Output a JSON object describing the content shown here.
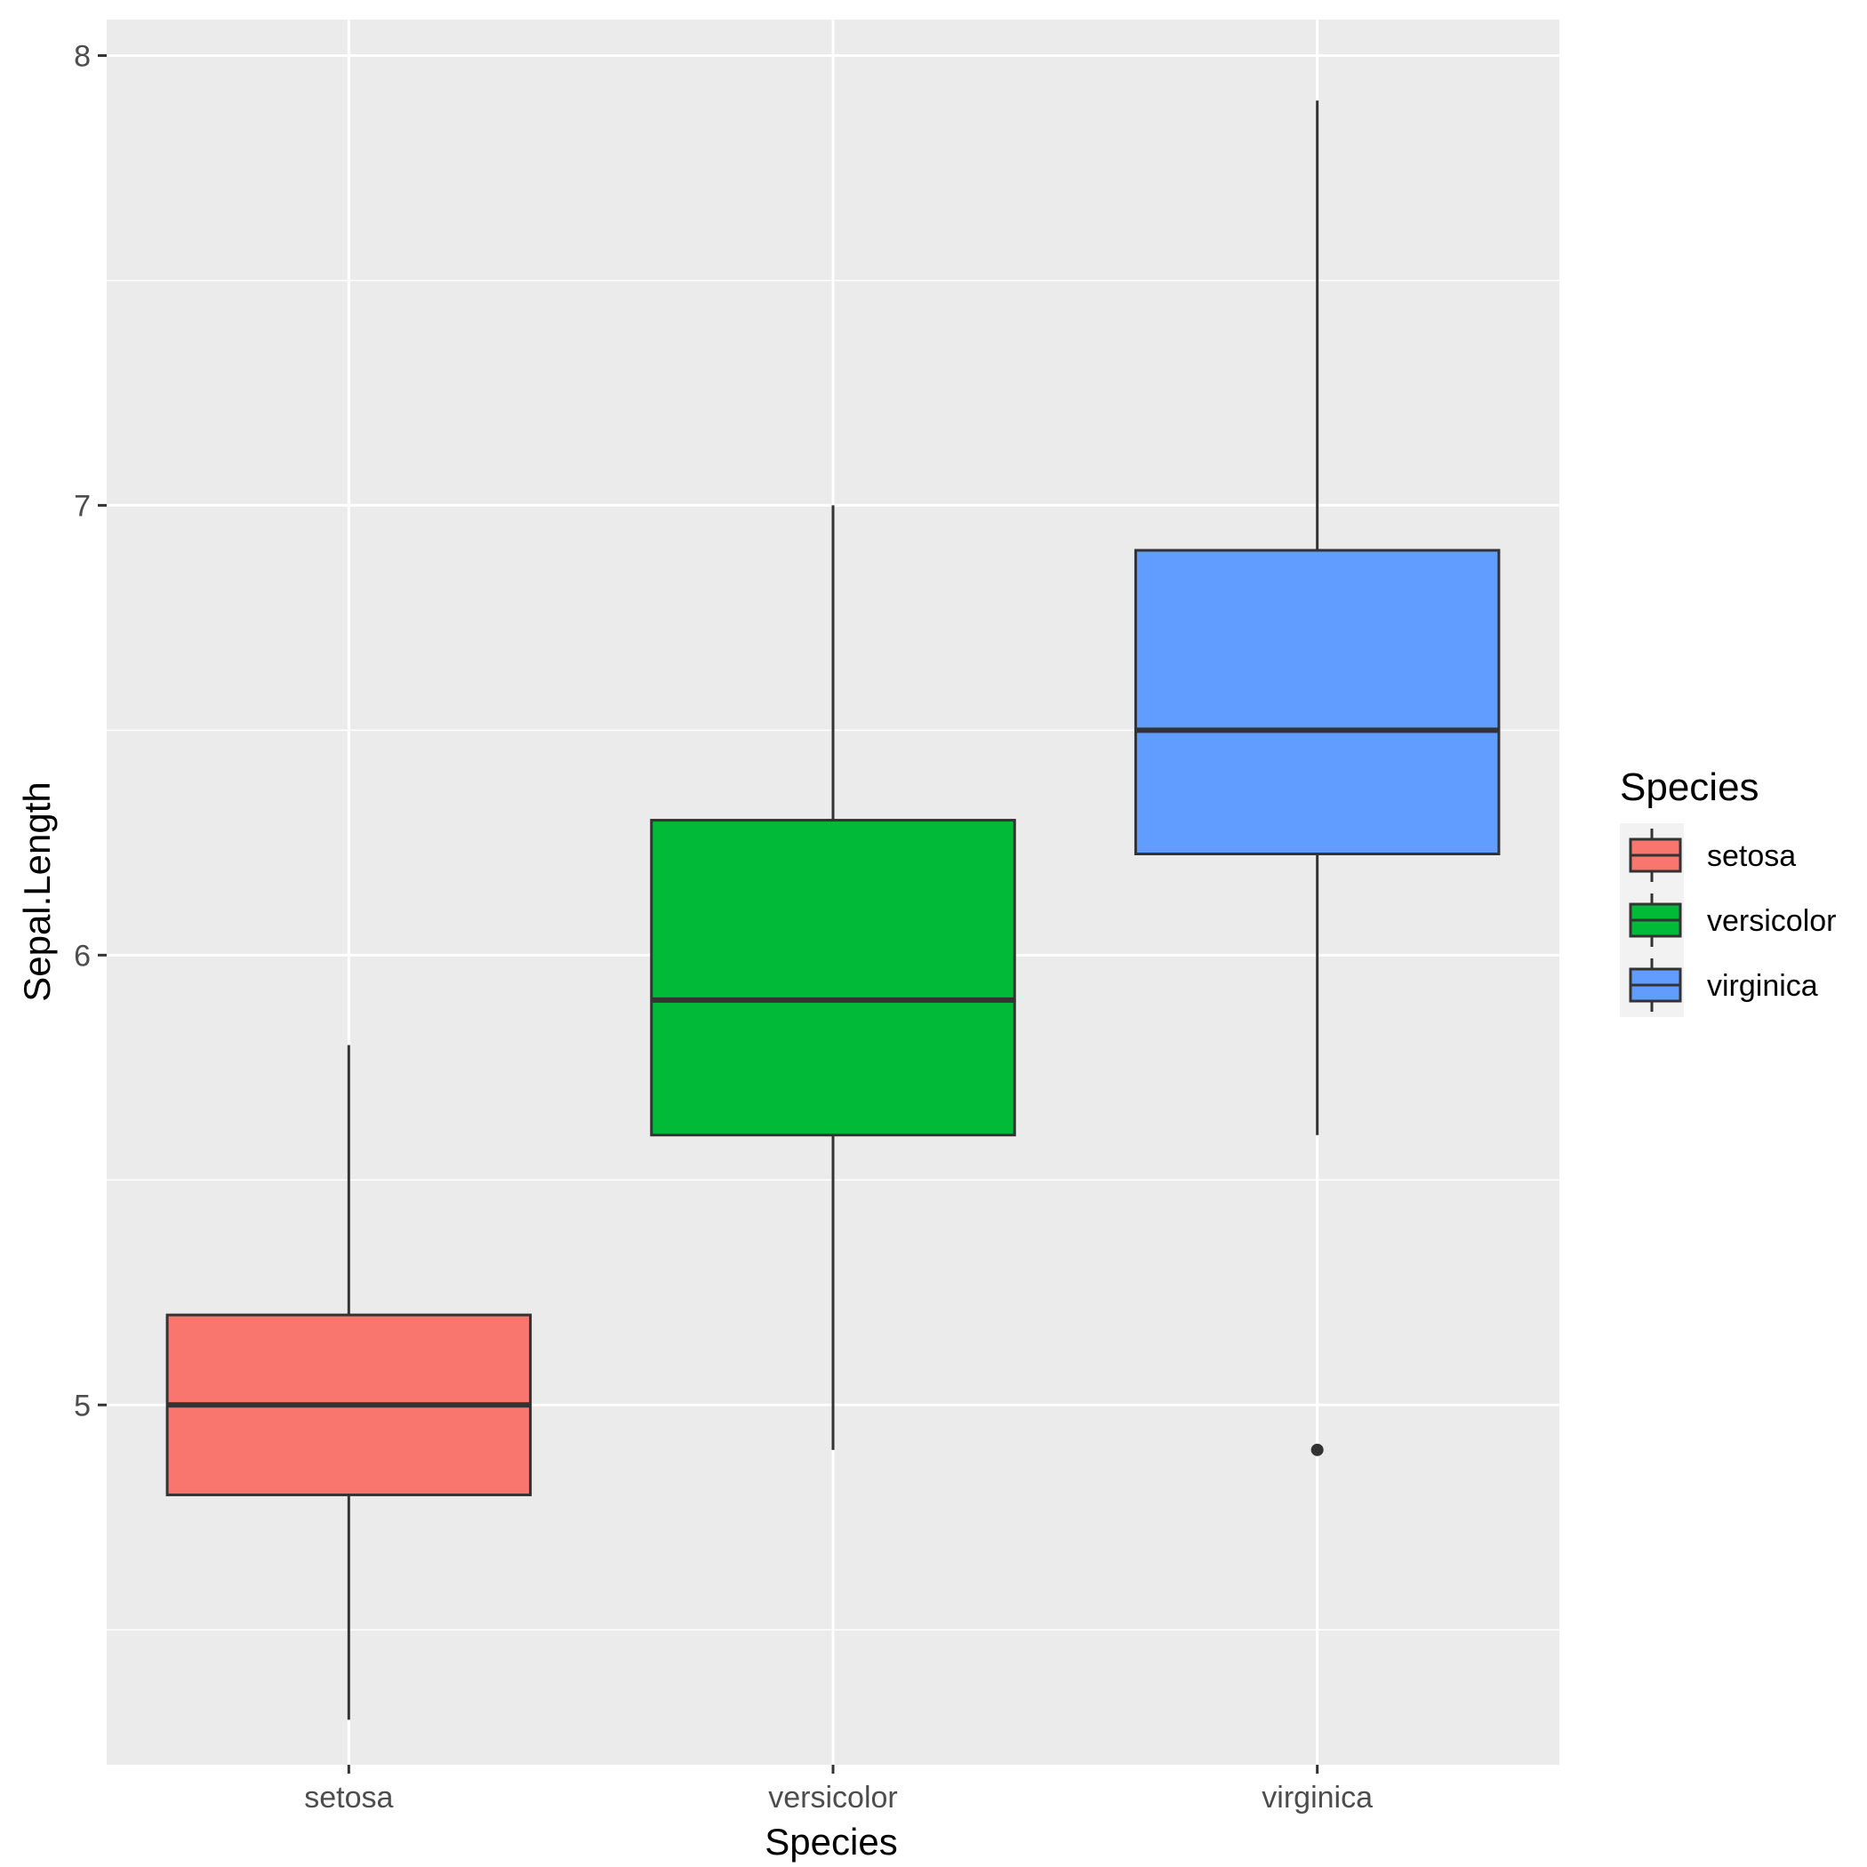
{
  "chart_data": {
    "type": "boxplot",
    "xlabel": "Species",
    "ylabel": "Sepal.Length",
    "categories": [
      "setosa",
      "versicolor",
      "virginica"
    ],
    "ylim": [
      4.2,
      8.08
    ],
    "yticks": [
      "5",
      "6",
      "7",
      "8"
    ],
    "grid": true,
    "boxes": [
      {
        "category": "setosa",
        "whisker_low": 4.3,
        "q1": 4.8,
        "median": 5.0,
        "q3": 5.2,
        "whisker_high": 5.8,
        "outliers": []
      },
      {
        "category": "versicolor",
        "whisker_low": 4.9,
        "q1": 5.6,
        "median": 5.9,
        "q3": 6.3,
        "whisker_high": 7.0,
        "outliers": []
      },
      {
        "category": "virginica",
        "whisker_low": 5.6,
        "q1": 6.225,
        "median": 6.5,
        "q3": 6.9,
        "whisker_high": 7.9,
        "outliers": [
          4.9
        ]
      }
    ],
    "legend": {
      "title": "Species",
      "position": "right",
      "entries": [
        "setosa",
        "versicolor",
        "virginica"
      ]
    },
    "colors": {
      "setosa": "#F8766D",
      "versicolor": "#00BA38",
      "virginica": "#619CFF",
      "panel": "#EBEBEB",
      "grid": "#FFFFFF",
      "outline": "#333333"
    }
  }
}
